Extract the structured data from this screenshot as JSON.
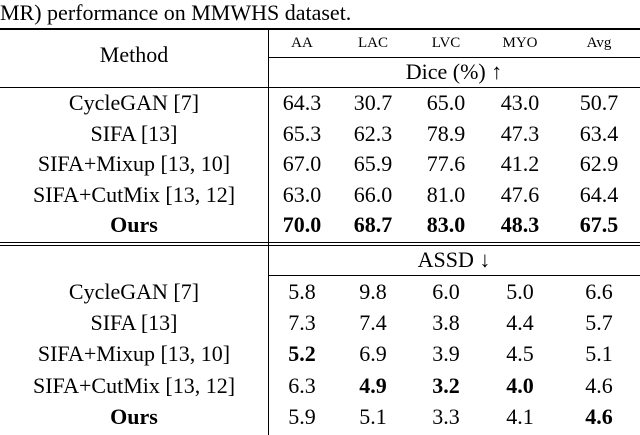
{
  "caption": "MR) performance on MMWHS dataset.",
  "header": {
    "method": "Method",
    "columns": [
      "AA",
      "LAC",
      "LVC",
      "MYO",
      "Avg"
    ]
  },
  "dice": {
    "label": "Dice (%) ↑",
    "rows": [
      {
        "method": "CycleGAN [7]",
        "bold_method": false,
        "values": [
          "64.3",
          "30.7",
          "65.0",
          "43.0",
          "50.7"
        ],
        "bold": [
          false,
          false,
          false,
          false,
          false
        ]
      },
      {
        "method": "SIFA [13]",
        "bold_method": false,
        "values": [
          "65.3",
          "62.3",
          "78.9",
          "47.3",
          "63.4"
        ],
        "bold": [
          false,
          false,
          false,
          false,
          false
        ]
      },
      {
        "method": "SIFA+Mixup [13, 10]",
        "bold_method": false,
        "values": [
          "67.0",
          "65.9",
          "77.6",
          "41.2",
          "62.9"
        ],
        "bold": [
          false,
          false,
          false,
          false,
          false
        ]
      },
      {
        "method": "SIFA+CutMix [13, 12]",
        "bold_method": false,
        "values": [
          "63.0",
          "66.0",
          "81.0",
          "47.6",
          "64.4"
        ],
        "bold": [
          false,
          false,
          false,
          false,
          false
        ]
      },
      {
        "method": "Ours",
        "bold_method": true,
        "values": [
          "70.0",
          "68.7",
          "83.0",
          "48.3",
          "67.5"
        ],
        "bold": [
          true,
          true,
          true,
          true,
          true
        ]
      }
    ]
  },
  "assd": {
    "label": "ASSD ↓",
    "rows": [
      {
        "method": "CycleGAN [7]",
        "bold_method": false,
        "values": [
          "5.8",
          "9.8",
          "6.0",
          "5.0",
          "6.6"
        ],
        "bold": [
          false,
          false,
          false,
          false,
          false
        ]
      },
      {
        "method": "SIFA [13]",
        "bold_method": false,
        "values": [
          "7.3",
          "7.4",
          "3.8",
          "4.4",
          "5.7"
        ],
        "bold": [
          false,
          false,
          false,
          false,
          false
        ]
      },
      {
        "method": "SIFA+Mixup [13, 10]",
        "bold_method": false,
        "values": [
          "5.2",
          "6.9",
          "3.9",
          "4.5",
          "5.1"
        ],
        "bold": [
          true,
          false,
          false,
          false,
          false
        ]
      },
      {
        "method": "SIFA+CutMix [13, 12]",
        "bold_method": false,
        "values": [
          "6.3",
          "4.9",
          "3.2",
          "4.0",
          "4.6"
        ],
        "bold": [
          false,
          true,
          true,
          true,
          false
        ]
      },
      {
        "method": "Ours",
        "bold_method": true,
        "values": [
          "5.9",
          "5.1",
          "3.3",
          "4.1",
          "4.6"
        ],
        "bold": [
          false,
          false,
          false,
          false,
          true
        ]
      }
    ]
  }
}
